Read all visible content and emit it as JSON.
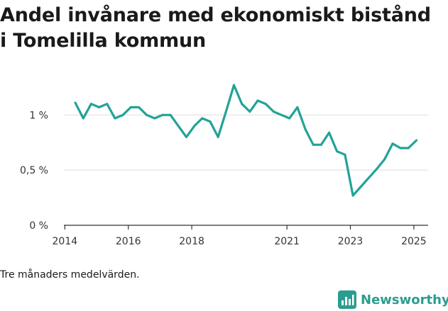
{
  "title": "Andel invånare med ekonomiskt bistånd i Tomelilla kommun",
  "footnote": "Tre månaders medelvärden.",
  "brand": {
    "name": "Newsworthy",
    "icon": "bar-chart-logo-icon",
    "color": "#2a9d8f"
  },
  "colors": {
    "line": "#22a397",
    "grid": "#dddddd",
    "axis": "#333333"
  },
  "chart_data": {
    "type": "line",
    "title": "Andel invånare med ekonomiskt bistånd i Tomelilla kommun",
    "xlabel": "",
    "ylabel": "",
    "xlim": [
      2013.97,
      2025.45
    ],
    "ylim": [
      0,
      1.4
    ],
    "y_ticks": [
      {
        "value": 0,
        "label": "0 %"
      },
      {
        "value": 0.5,
        "label": "0,5 %"
      },
      {
        "value": 1.0,
        "label": "1 %"
      }
    ],
    "x_ticks": [
      {
        "value": 2014,
        "label": "2014"
      },
      {
        "value": 2016,
        "label": "2016"
      },
      {
        "value": 2018,
        "label": "2018"
      },
      {
        "value": 2021,
        "label": "2021"
      },
      {
        "value": 2023,
        "label": "2023"
      },
      {
        "value": 2025,
        "label": "2025"
      }
    ],
    "grid": true,
    "legend": "none",
    "series": [
      {
        "x": [
          2014.33,
          2014.58,
          2014.83,
          2015.08,
          2015.33,
          2015.58,
          2015.83,
          2016.08,
          2016.33,
          2016.58,
          2016.83,
          2017.08,
          2017.33,
          2017.58,
          2017.83,
          2018.08,
          2018.33,
          2018.58,
          2018.83,
          2019.08,
          2019.33,
          2019.58,
          2019.83,
          2020.08,
          2020.33,
          2020.58,
          2020.83,
          2021.08,
          2021.33,
          2021.58,
          2021.83,
          2022.08,
          2022.33,
          2022.58,
          2022.83,
          2023.08,
          2023.33,
          2023.58,
          2023.83,
          2024.08,
          2024.33,
          2024.58,
          2024.83,
          2025.08
        ],
        "values": [
          1.11,
          0.97,
          1.1,
          1.07,
          1.1,
          0.97,
          1.0,
          1.07,
          1.07,
          1.0,
          0.97,
          1.0,
          1.0,
          0.9,
          0.8,
          0.9,
          0.97,
          0.94,
          0.8,
          1.03,
          1.27,
          1.1,
          1.03,
          1.13,
          1.1,
          1.03,
          1.0,
          0.97,
          1.07,
          0.87,
          0.73,
          0.73,
          0.84,
          0.67,
          0.64,
          0.27,
          0.35,
          0.43,
          0.51,
          0.6,
          0.74,
          0.7,
          0.7,
          0.77
        ]
      }
    ]
  }
}
